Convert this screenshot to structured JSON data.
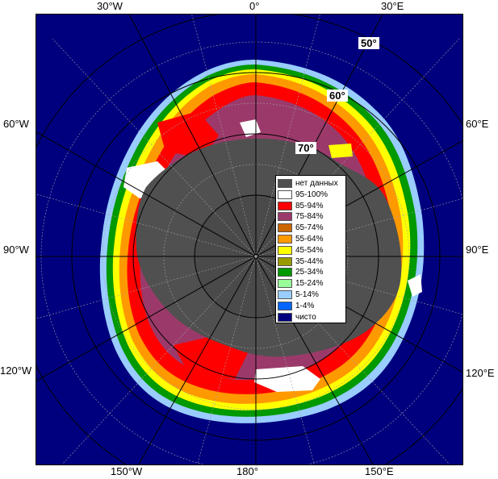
{
  "map": {
    "longitude_labels": {
      "top": [
        "30°W",
        "0°",
        "30°E"
      ],
      "bottom": [
        "150°W",
        "180°",
        "150°E"
      ],
      "left": [
        "60°W",
        "90°W",
        "120°W"
      ],
      "right": [
        "60°E",
        "90°E",
        "120°E"
      ]
    },
    "latitude_labels": [
      "50°",
      "60°",
      "70°"
    ],
    "colors": {
      "ocean": "#00007f",
      "land": "#505050",
      "grid": "#a0a0a0"
    }
  },
  "legend": {
    "items": [
      {
        "label": "нет данных",
        "color": "#505050"
      },
      {
        "label": "95-100%",
        "color": "#ffffff"
      },
      {
        "label": "85-94%",
        "color": "#ff0000"
      },
      {
        "label": "75-84%",
        "color": "#9b3a6a"
      },
      {
        "label": "65-74%",
        "color": "#cc6600"
      },
      {
        "label": "55-64%",
        "color": "#ff9900"
      },
      {
        "label": "45-54%",
        "color": "#ffff00"
      },
      {
        "label": "35-44%",
        "color": "#999900"
      },
      {
        "label": "25-34%",
        "color": "#009900"
      },
      {
        "label": "15-24%",
        "color": "#99ff99"
      },
      {
        "label": "5-14%",
        "color": "#99ccff"
      },
      {
        "label": "1-4%",
        "color": "#0066ff"
      },
      {
        "label": "чисто",
        "color": "#00007f"
      }
    ]
  }
}
